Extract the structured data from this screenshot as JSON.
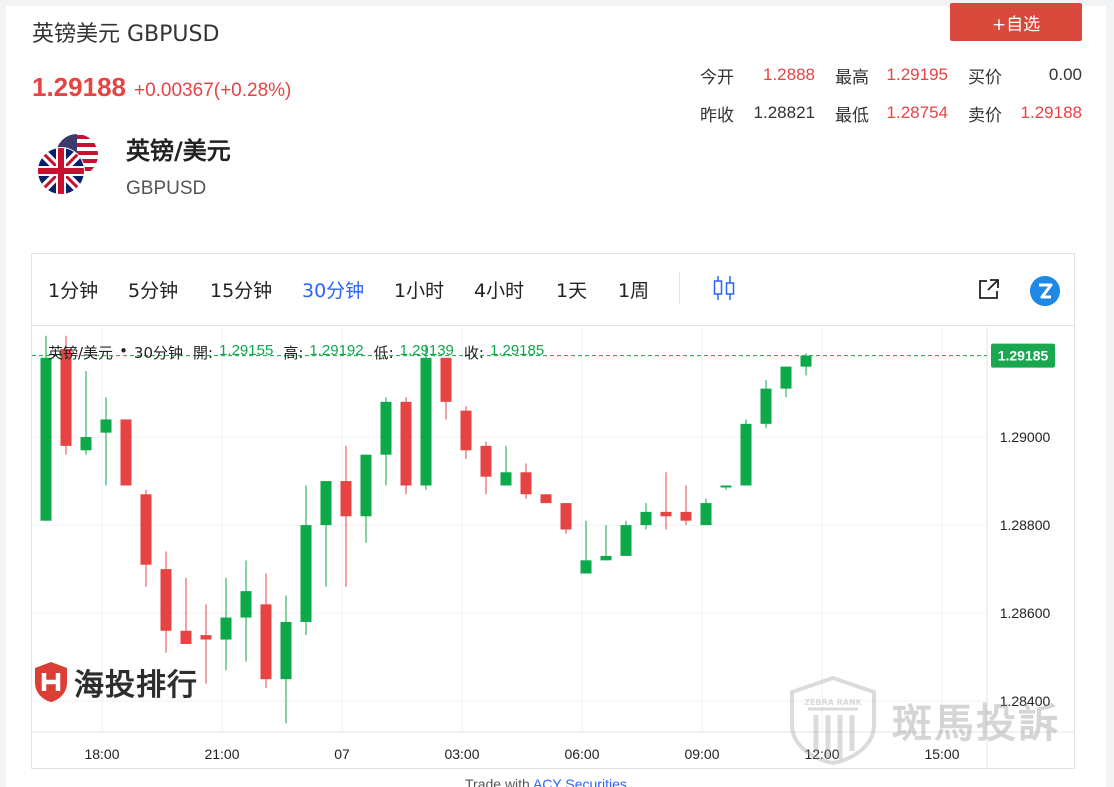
{
  "header": {
    "title": "英镑美元 GBPUSD",
    "price": "1.29188",
    "change": "+0.00367(+0.28%)",
    "watch_button": "+自选"
  },
  "quotes": {
    "row1": [
      {
        "label": "今开",
        "value": "1.2888",
        "color": "red"
      },
      {
        "label": "最高",
        "value": "1.29195",
        "color": "red"
      },
      {
        "label": "买价",
        "value": "0.00",
        "color": "black"
      }
    ],
    "row2": [
      {
        "label": "昨收",
        "value": "1.28821",
        "color": "black"
      },
      {
        "label": "最低",
        "value": "1.28754",
        "color": "red"
      },
      {
        "label": "卖价",
        "value": "1.29188",
        "color": "red"
      }
    ]
  },
  "instrument": {
    "name": "英镑/美元",
    "code": "GBPUSD",
    "flag_icon": "gb-us-flag-icon"
  },
  "toolbar": {
    "timeframes": [
      "1分钟",
      "5分钟",
      "15分钟",
      "30分钟",
      "1小时",
      "4小时",
      "1天",
      "1周"
    ],
    "active": "30分钟"
  },
  "legend": {
    "symbol": "英镑/美元",
    "dot": "•",
    "interval": "30分钟",
    "open_label": "開:",
    "open": "1.29155",
    "high_label": "高:",
    "high": "1.29192",
    "low_label": "低:",
    "low": "1.29139",
    "close_label": "收:",
    "close": "1.29185"
  },
  "logos": {
    "left": "海投排行",
    "watermark": "斑馬投訴",
    "watermark_small": "ZEBRA RANK"
  },
  "footer": {
    "trade_with": "Trade with",
    "broker": "ACY Securities"
  },
  "colors": {
    "up": "#0ca84a",
    "down": "#e64343",
    "accent": "#2962ff",
    "button": "#d9483b"
  },
  "chart_data": {
    "type": "candlestick",
    "y_ticks": [
      "1.29000",
      "1.28800",
      "1.28600",
      "1.28400"
    ],
    "y_tick_values": [
      1.29,
      1.288,
      1.286,
      1.284
    ],
    "ylim": [
      1.2833,
      1.2925
    ],
    "x_ticks": [
      "18:00",
      "21:00",
      "07",
      "03:00",
      "06:00",
      "09:00",
      "12:00",
      "15:00"
    ],
    "last_price_label": "1.29185",
    "last_price": 1.29185,
    "candles": [
      {
        "o": 1.2881,
        "h": 1.2923,
        "l": 1.2881,
        "c": 1.2918
      },
      {
        "o": 1.292,
        "h": 1.2923,
        "l": 1.2896,
        "c": 1.2898
      },
      {
        "o": 1.2897,
        "h": 1.2915,
        "l": 1.2896,
        "c": 1.29
      },
      {
        "o": 1.2901,
        "h": 1.2909,
        "l": 1.2889,
        "c": 1.2904
      },
      {
        "o": 1.2904,
        "h": 1.2904,
        "l": 1.2889,
        "c": 1.2889
      },
      {
        "o": 1.2887,
        "h": 1.2888,
        "l": 1.2866,
        "c": 1.2871
      },
      {
        "o": 1.287,
        "h": 1.2874,
        "l": 1.2851,
        "c": 1.2856
      },
      {
        "o": 1.2856,
        "h": 1.2868,
        "l": 1.2853,
        "c": 1.2853
      },
      {
        "o": 1.2855,
        "h": 1.2862,
        "l": 1.2844,
        "c": 1.2854
      },
      {
        "o": 1.2854,
        "h": 1.2868,
        "l": 1.2847,
        "c": 1.2859
      },
      {
        "o": 1.2859,
        "h": 1.2872,
        "l": 1.2849,
        "c": 1.2865
      },
      {
        "o": 1.2862,
        "h": 1.2869,
        "l": 1.2843,
        "c": 1.2845
      },
      {
        "o": 1.2845,
        "h": 1.2864,
        "l": 1.2835,
        "c": 1.2858
      },
      {
        "o": 1.2858,
        "h": 1.2889,
        "l": 1.2855,
        "c": 1.288
      },
      {
        "o": 1.288,
        "h": 1.289,
        "l": 1.2866,
        "c": 1.289
      },
      {
        "o": 1.289,
        "h": 1.2898,
        "l": 1.2866,
        "c": 1.2882
      },
      {
        "o": 1.2882,
        "h": 1.2896,
        "l": 1.2876,
        "c": 1.2896
      },
      {
        "o": 1.2896,
        "h": 1.2909,
        "l": 1.2889,
        "c": 1.2908
      },
      {
        "o": 1.2908,
        "h": 1.2909,
        "l": 1.2887,
        "c": 1.2889
      },
      {
        "o": 1.2889,
        "h": 1.2921,
        "l": 1.2888,
        "c": 1.2918
      },
      {
        "o": 1.2918,
        "h": 1.2918,
        "l": 1.2904,
        "c": 1.2908
      },
      {
        "o": 1.2906,
        "h": 1.2907,
        "l": 1.2895,
        "c": 1.2897
      },
      {
        "o": 1.2898,
        "h": 1.2899,
        "l": 1.2887,
        "c": 1.2891
      },
      {
        "o": 1.2889,
        "h": 1.2898,
        "l": 1.2889,
        "c": 1.2892
      },
      {
        "o": 1.2892,
        "h": 1.2894,
        "l": 1.2886,
        "c": 1.2887
      },
      {
        "o": 1.2887,
        "h": 1.2887,
        "l": 1.2885,
        "c": 1.2885
      },
      {
        "o": 1.2885,
        "h": 1.2885,
        "l": 1.2878,
        "c": 1.2879
      },
      {
        "o": 1.2869,
        "h": 1.2881,
        "l": 1.2869,
        "c": 1.2872
      },
      {
        "o": 1.2872,
        "h": 1.288,
        "l": 1.2872,
        "c": 1.2873
      },
      {
        "o": 1.2873,
        "h": 1.2881,
        "l": 1.2873,
        "c": 1.288
      },
      {
        "o": 1.288,
        "h": 1.2885,
        "l": 1.2879,
        "c": 1.2883
      },
      {
        "o": 1.2883,
        "h": 1.2892,
        "l": 1.2879,
        "c": 1.2882
      },
      {
        "o": 1.2883,
        "h": 1.2889,
        "l": 1.288,
        "c": 1.2881
      },
      {
        "o": 1.288,
        "h": 1.2886,
        "l": 1.288,
        "c": 1.2885
      },
      {
        "o": 1.2889,
        "h": 1.2889,
        "l": 1.2888,
        "c": 1.2889
      },
      {
        "o": 1.2889,
        "h": 1.2904,
        "l": 1.2889,
        "c": 1.2903
      },
      {
        "o": 1.2903,
        "h": 1.2913,
        "l": 1.2902,
        "c": 1.2911
      },
      {
        "o": 1.2911,
        "h": 1.2916,
        "l": 1.2909,
        "c": 1.2916
      },
      {
        "o": 1.2916,
        "h": 1.2919,
        "l": 1.2914,
        "c": 1.29185
      }
    ]
  }
}
